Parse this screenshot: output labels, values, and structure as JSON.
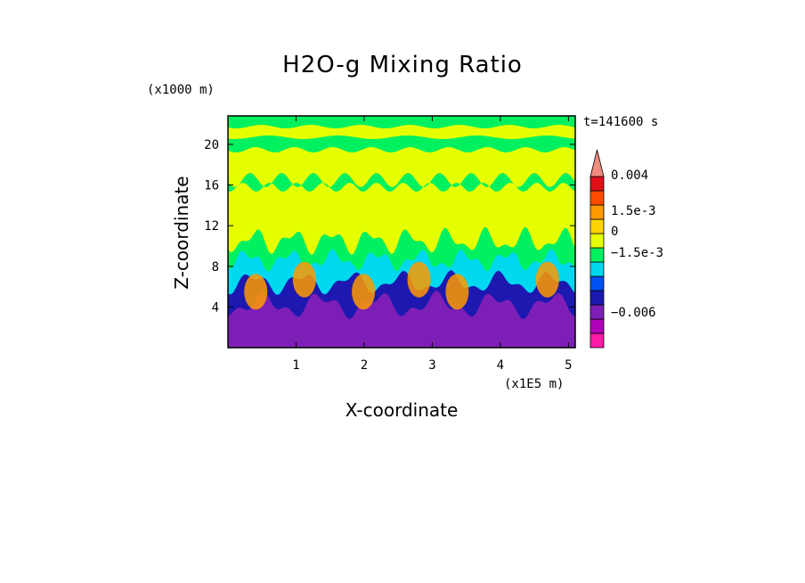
{
  "chart_data": {
    "type": "heatmap",
    "title": "H2O-g Mixing Ratio",
    "xlabel": "X-coordinate",
    "ylabel": "Z-coordinate",
    "x_unit": "(x1E5 m)",
    "z_unit": "(x1000 m)",
    "time_label": "t=141600 s",
    "xlim": [
      0,
      5.1
    ],
    "ylim": [
      0,
      22.8
    ],
    "x_ticks": [
      1,
      2,
      3,
      4,
      5
    ],
    "y_ticks": [
      4,
      8,
      12,
      16,
      20
    ],
    "colorbar": {
      "levels": [
        {
          "color": "#ff1aa8"
        },
        {
          "color": "#b000b8"
        },
        {
          "color": "#7d1fb6"
        },
        {
          "color": "#1c18b0"
        },
        {
          "color": "#0050f0"
        },
        {
          "color": "#00d8f0"
        },
        {
          "color": "#00f060"
        },
        {
          "color": "#e6ff00"
        },
        {
          "color": "#ffd400"
        },
        {
          "color": "#ff9a00"
        },
        {
          "color": "#ff4b00"
        },
        {
          "color": "#e0101a"
        },
        {
          "color": "#f08b80"
        }
      ],
      "labels": [
        "0.004",
        "1.5e-3",
        "0",
        "−1.5e-3",
        "−0.006"
      ]
    },
    "layers": [
      {
        "name": "lower_layer",
        "color": "#7d1fb6"
      },
      {
        "name": "blue_band",
        "color": "#1c18b0"
      },
      {
        "name": "cyan_band",
        "color": "#00d8f0"
      },
      {
        "name": "green_band",
        "color": "#00f060"
      },
      {
        "name": "yellow_bulk",
        "color": "#e6ff00"
      },
      {
        "name": "upper_green",
        "color": "#00f060"
      },
      {
        "name": "orange_plumes",
        "color": "#ff9a00"
      }
    ]
  }
}
